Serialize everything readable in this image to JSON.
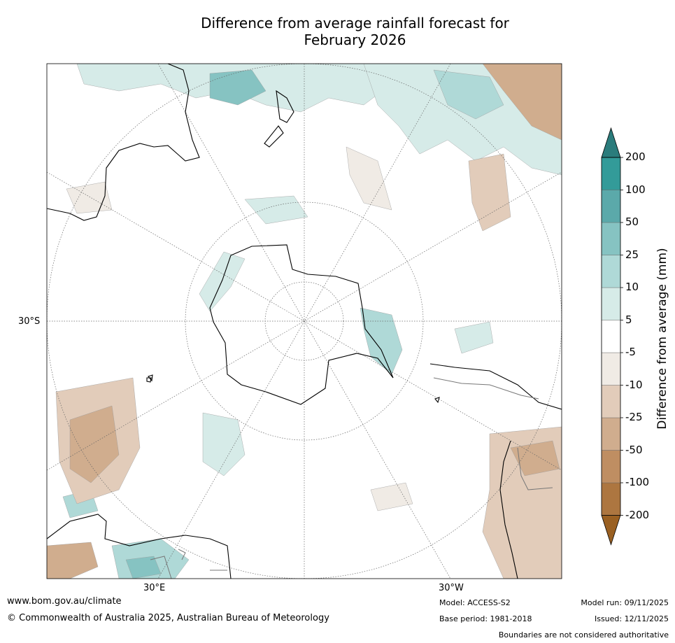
{
  "title_line1": "Difference from average rainfall forecast for",
  "title_line2": "February 2026",
  "axis_labels": {
    "lat": "30°S",
    "lon_left": "30°E",
    "lon_right": "30°W"
  },
  "colorbar": {
    "title": "Difference from average (mm)",
    "ticks": [
      "200",
      "100",
      "50",
      "25",
      "10",
      "5",
      "-5",
      "-10",
      "-25",
      "-50",
      "-100",
      "-200"
    ],
    "colors": [
      "#9a6022",
      "#ad7640",
      "#bf8e62",
      "#d0ad8e",
      "#e2ccba",
      "#f0ebe5",
      "#ffffff",
      "#d6ebe8",
      "#afd9d7",
      "#86c3c2",
      "#5ba9aa",
      "#339b99",
      "#2b7c7c"
    ]
  },
  "footer": {
    "website": "www.bom.gov.au/climate",
    "copyright": "© Commonwealth of Australia 2025, Australian Bureau of Meteorology",
    "model": "Model: ACCESS-S2",
    "base_period": "Base period: 1981-2018",
    "model_run": "Model run: 09/11/2025",
    "issued": "Issued: 12/11/2025",
    "disclaimer": "Boundaries are not considered authoritative"
  }
}
